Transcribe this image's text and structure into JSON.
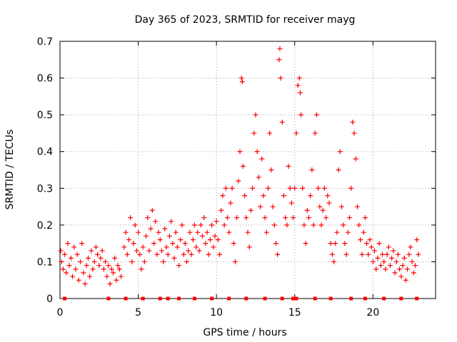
{
  "chart_data": {
    "type": "scatter",
    "title": "Day 365 of 2023, SRMTID for receiver mayg",
    "xlabel": "GPS time / hours",
    "ylabel": "SRMTID / TECUs",
    "xlim": [
      0,
      24
    ],
    "ylim": [
      0,
      0.7
    ],
    "xticks": [
      0,
      5,
      10,
      15,
      20
    ],
    "yticks": [
      0,
      0.1,
      0.2,
      0.3,
      0.4,
      0.5,
      0.6,
      0.7
    ],
    "grid": true,
    "marker": "plus",
    "color": "#ff0000",
    "series": [
      {
        "name": "SRMTID",
        "points": [
          [
            0.05,
            0.13
          ],
          [
            0.1,
            0.1
          ],
          [
            0.2,
            0.08
          ],
          [
            0.3,
            0.12
          ],
          [
            0.4,
            0.07
          ],
          [
            0.5,
            0.15
          ],
          [
            0.6,
            0.09
          ],
          [
            0.7,
            0.11
          ],
          [
            0.8,
            0.06
          ],
          [
            0.9,
            0.14
          ],
          [
            1.0,
            0.08
          ],
          [
            1.1,
            0.12
          ],
          [
            1.2,
            0.05
          ],
          [
            1.3,
            0.1
          ],
          [
            1.4,
            0.15
          ],
          [
            1.5,
            0.07
          ],
          [
            1.6,
            0.04
          ],
          [
            1.7,
            0.09
          ],
          [
            1.8,
            0.11
          ],
          [
            1.9,
            0.06
          ],
          [
            2.0,
            0.13
          ],
          [
            2.1,
            0.08
          ],
          [
            2.2,
            0.1
          ],
          [
            2.3,
            0.14
          ],
          [
            2.4,
            0.12
          ],
          [
            2.5,
            0.09
          ],
          [
            2.6,
            0.11
          ],
          [
            2.7,
            0.13
          ],
          [
            2.8,
            0.08
          ],
          [
            2.9,
            0.1
          ],
          [
            3.0,
            0.06
          ],
          [
            3.1,
            0.09
          ],
          [
            3.2,
            0.04
          ],
          [
            3.3,
            0.08
          ],
          [
            3.4,
            0.07
          ],
          [
            3.5,
            0.11
          ],
          [
            3.6,
            0.05
          ],
          [
            3.7,
            0.09
          ],
          [
            3.8,
            0.08
          ],
          [
            3.9,
            0.06
          ],
          [
            4.1,
            0.14
          ],
          [
            4.2,
            0.18
          ],
          [
            4.3,
            0.12
          ],
          [
            4.4,
            0.16
          ],
          [
            4.5,
            0.22
          ],
          [
            4.6,
            0.1
          ],
          [
            4.7,
            0.15
          ],
          [
            4.8,
            0.2
          ],
          [
            4.9,
            0.13
          ],
          [
            5.0,
            0.18
          ],
          [
            5.1,
            0.12
          ],
          [
            5.2,
            0.08
          ],
          [
            5.3,
            0.14
          ],
          [
            5.4,
            0.1
          ],
          [
            5.5,
            0.17
          ],
          [
            5.6,
            0.22
          ],
          [
            5.7,
            0.13
          ],
          [
            5.8,
            0.19
          ],
          [
            5.9,
            0.24
          ],
          [
            6.0,
            0.15
          ],
          [
            6.1,
            0.21
          ],
          [
            6.2,
            0.12
          ],
          [
            6.3,
            0.18
          ],
          [
            6.4,
            0.16
          ],
          [
            6.5,
            0.13
          ],
          [
            6.6,
            0.1
          ],
          [
            6.7,
            0.19
          ],
          [
            6.8,
            0.14
          ],
          [
            6.9,
            0.12
          ],
          [
            7.0,
            0.17
          ],
          [
            7.1,
            0.21
          ],
          [
            7.2,
            0.15
          ],
          [
            7.3,
            0.11
          ],
          [
            7.4,
            0.18
          ],
          [
            7.5,
            0.14
          ],
          [
            7.6,
            0.09
          ],
          [
            7.7,
            0.16
          ],
          [
            7.8,
            0.2
          ],
          [
            7.9,
            0.12
          ],
          [
            8.0,
            0.15
          ],
          [
            8.1,
            0.1
          ],
          [
            8.2,
            0.13
          ],
          [
            8.3,
            0.18
          ],
          [
            8.4,
            0.12
          ],
          [
            8.5,
            0.16
          ],
          [
            8.6,
            0.2
          ],
          [
            8.7,
            0.14
          ],
          [
            8.8,
            0.18
          ],
          [
            8.9,
            0.13
          ],
          [
            9.0,
            0.2
          ],
          [
            9.1,
            0.17
          ],
          [
            9.2,
            0.22
          ],
          [
            9.3,
            0.15
          ],
          [
            9.4,
            0.18
          ],
          [
            9.5,
            0.12
          ],
          [
            9.6,
            0.16
          ],
          [
            9.7,
            0.2
          ],
          [
            9.8,
            0.14
          ],
          [
            9.9,
            0.17
          ],
          [
            10.0,
            0.21
          ],
          [
            10.1,
            0.16
          ],
          [
            10.2,
            0.12
          ],
          [
            10.3,
            0.24
          ],
          [
            10.4,
            0.28
          ],
          [
            10.5,
            0.2
          ],
          [
            10.6,
            0.3
          ],
          [
            10.7,
            0.22
          ],
          [
            10.8,
            0.18
          ],
          [
            10.9,
            0.26
          ],
          [
            11.0,
            0.3
          ],
          [
            11.1,
            0.15
          ],
          [
            11.2,
            0.1
          ],
          [
            11.3,
            0.22
          ],
          [
            11.4,
            0.32
          ],
          [
            11.5,
            0.4
          ],
          [
            11.6,
            0.6
          ],
          [
            11.65,
            0.59
          ],
          [
            11.7,
            0.36
          ],
          [
            11.8,
            0.28
          ],
          [
            11.9,
            0.22
          ],
          [
            12.0,
            0.18
          ],
          [
            12.1,
            0.14
          ],
          [
            12.2,
            0.24
          ],
          [
            12.3,
            0.3
          ],
          [
            12.4,
            0.45
          ],
          [
            12.5,
            0.5
          ],
          [
            12.6,
            0.4
          ],
          [
            12.7,
            0.33
          ],
          [
            12.8,
            0.25
          ],
          [
            12.9,
            0.38
          ],
          [
            13.0,
            0.28
          ],
          [
            13.1,
            0.22
          ],
          [
            13.2,
            0.18
          ],
          [
            13.3,
            0.3
          ],
          [
            13.4,
            0.45
          ],
          [
            13.5,
            0.35
          ],
          [
            13.6,
            0.25
          ],
          [
            13.7,
            0.2
          ],
          [
            13.8,
            0.15
          ],
          [
            13.9,
            0.12
          ],
          [
            14.0,
            0.65
          ],
          [
            14.05,
            0.68
          ],
          [
            14.1,
            0.6
          ],
          [
            14.2,
            0.48
          ],
          [
            14.3,
            0.28
          ],
          [
            14.4,
            0.22
          ],
          [
            14.5,
            0.2
          ],
          [
            14.6,
            0.36
          ],
          [
            14.7,
            0.3
          ],
          [
            14.8,
            0.26
          ],
          [
            14.9,
            0.22
          ],
          [
            15.0,
            0.3
          ],
          [
            15.1,
            0.45
          ],
          [
            15.2,
            0.58
          ],
          [
            15.3,
            0.6
          ],
          [
            15.35,
            0.56
          ],
          [
            15.4,
            0.5
          ],
          [
            15.5,
            0.3
          ],
          [
            15.6,
            0.2
          ],
          [
            15.7,
            0.15
          ],
          [
            15.8,
            0.24
          ],
          [
            15.9,
            0.22
          ],
          [
            16.0,
            0.28
          ],
          [
            16.1,
            0.35
          ],
          [
            16.2,
            0.2
          ],
          [
            16.3,
            0.45
          ],
          [
            16.4,
            0.5
          ],
          [
            16.5,
            0.3
          ],
          [
            16.6,
            0.25
          ],
          [
            16.7,
            0.2
          ],
          [
            16.8,
            0.24
          ],
          [
            16.9,
            0.3
          ],
          [
            17.0,
            0.22
          ],
          [
            17.1,
            0.28
          ],
          [
            17.2,
            0.26
          ],
          [
            17.3,
            0.15
          ],
          [
            17.4,
            0.12
          ],
          [
            17.5,
            0.1
          ],
          [
            17.6,
            0.15
          ],
          [
            17.7,
            0.18
          ],
          [
            17.8,
            0.35
          ],
          [
            17.9,
            0.4
          ],
          [
            18.0,
            0.25
          ],
          [
            18.1,
            0.2
          ],
          [
            18.2,
            0.15
          ],
          [
            18.3,
            0.12
          ],
          [
            18.4,
            0.18
          ],
          [
            18.5,
            0.22
          ],
          [
            18.6,
            0.3
          ],
          [
            18.7,
            0.48
          ],
          [
            18.8,
            0.45
          ],
          [
            18.9,
            0.38
          ],
          [
            19.0,
            0.25
          ],
          [
            19.1,
            0.2
          ],
          [
            19.2,
            0.16
          ],
          [
            19.3,
            0.12
          ],
          [
            19.4,
            0.18
          ],
          [
            19.5,
            0.22
          ],
          [
            19.6,
            0.15
          ],
          [
            19.7,
            0.12
          ],
          [
            19.8,
            0.16
          ],
          [
            19.9,
            0.14
          ],
          [
            20.0,
            0.1
          ],
          [
            20.1,
            0.13
          ],
          [
            20.2,
            0.08
          ],
          [
            20.3,
            0.11
          ],
          [
            20.4,
            0.15
          ],
          [
            20.5,
            0.09
          ],
          [
            20.6,
            0.12
          ],
          [
            20.7,
            0.1
          ],
          [
            20.8,
            0.08
          ],
          [
            20.9,
            0.12
          ],
          [
            21.0,
            0.14
          ],
          [
            21.1,
            0.09
          ],
          [
            21.2,
            0.11
          ],
          [
            21.3,
            0.13
          ],
          [
            21.4,
            0.07
          ],
          [
            21.5,
            0.1
          ],
          [
            21.6,
            0.12
          ],
          [
            21.7,
            0.08
          ],
          [
            21.8,
            0.06
          ],
          [
            21.9,
            0.09
          ],
          [
            22.0,
            0.11
          ],
          [
            22.1,
            0.05
          ],
          [
            22.2,
            0.08
          ],
          [
            22.3,
            0.12
          ],
          [
            22.4,
            0.14
          ],
          [
            22.5,
            0.1
          ],
          [
            22.6,
            0.07
          ],
          [
            22.7,
            0.09
          ],
          [
            22.8,
            0.16
          ],
          [
            22.9,
            0.12
          ]
        ]
      }
    ],
    "zero_markers_x": [
      0.3,
      3.1,
      4.2,
      5.3,
      6.4,
      6.9,
      7.6,
      8.6,
      9.7,
      10.8,
      11.9,
      13.1,
      14.2,
      14.9,
      15.1,
      16.3,
      17.3,
      18.6,
      19.5,
      20.7,
      21.8,
      22.8
    ]
  }
}
